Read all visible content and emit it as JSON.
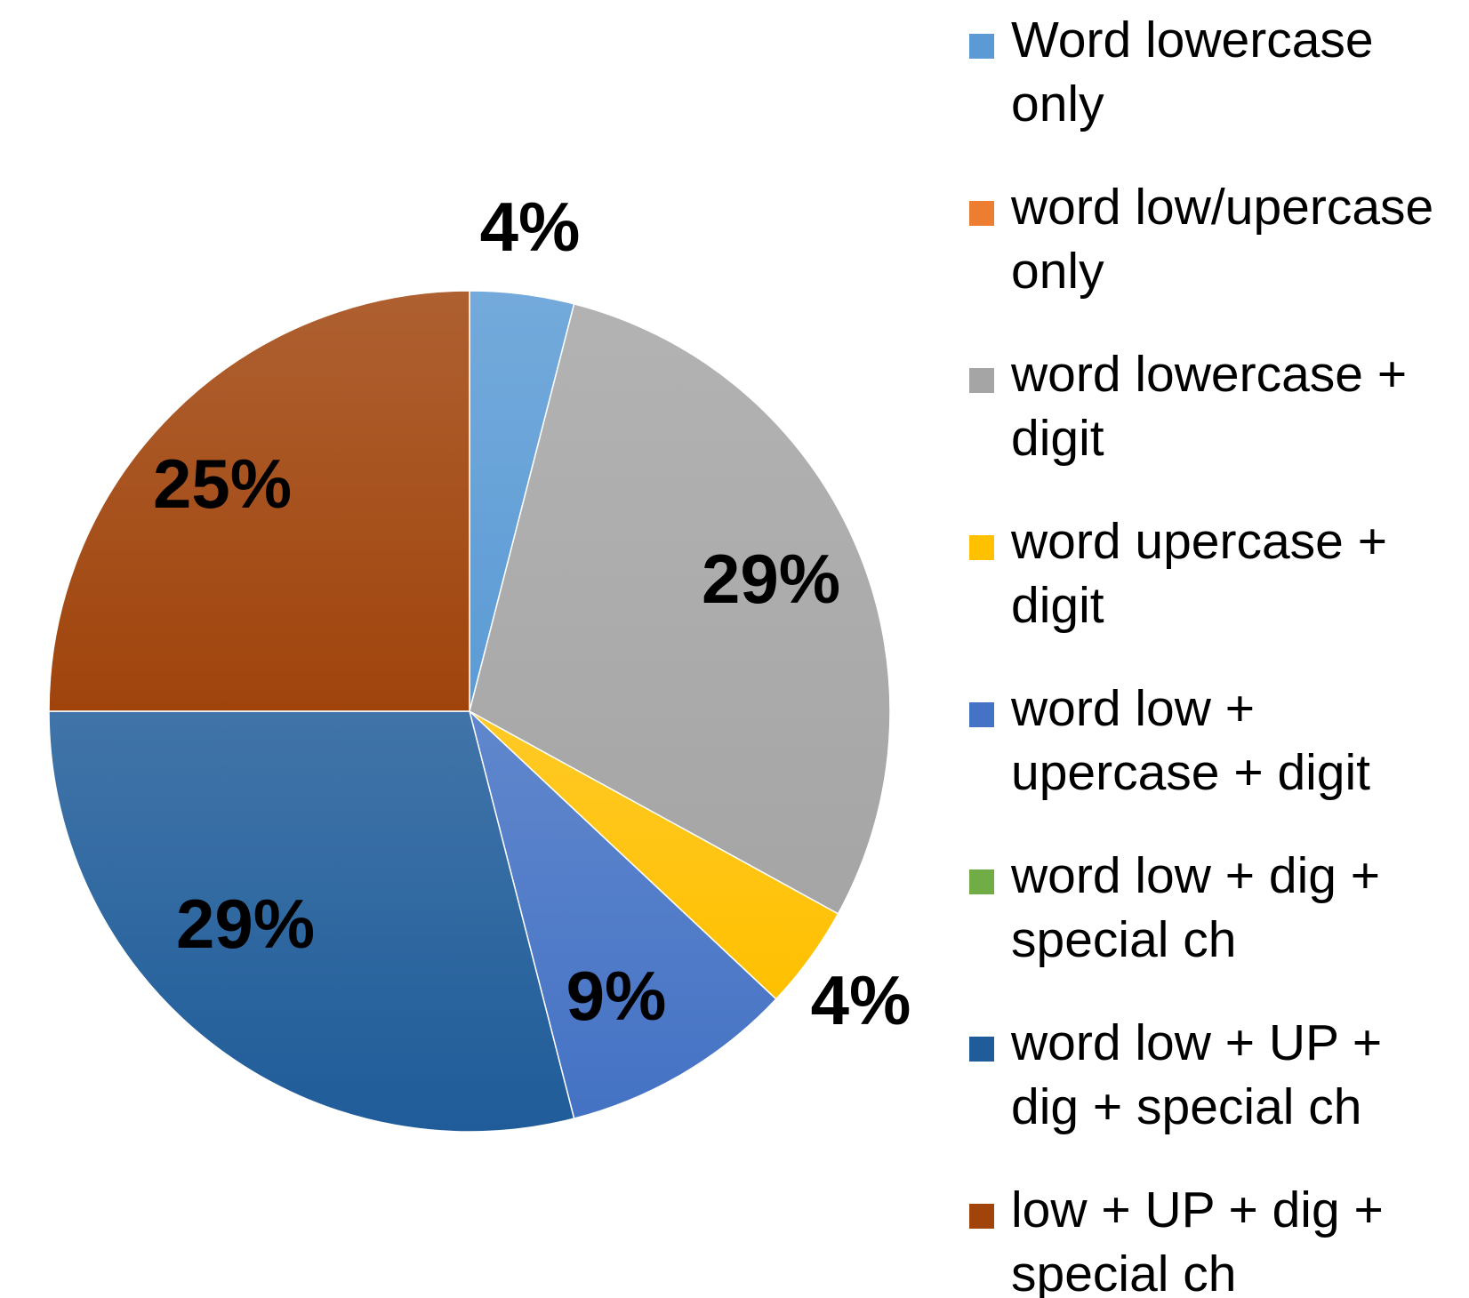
{
  "chart_data": {
    "type": "pie",
    "categories": [
      "Word lowercase only",
      "word low/upercase only",
      "word lowercase + digit",
      "word upercase + digit",
      "word low + upercase + digit",
      "word low + dig + special ch",
      "word low + UP + dig + special ch",
      "low + UP + dig + special ch"
    ],
    "values": [
      4,
      0,
      29,
      4,
      9,
      0,
      29,
      25
    ],
    "data_labels": [
      "4%",
      "",
      "29%",
      "4%",
      "9%",
      "",
      "29%",
      "25%"
    ],
    "legend_lines": [
      [
        "Word lowercase",
        "only"
      ],
      [
        "word low/upercase",
        "only"
      ],
      [
        "word lowercase +",
        "digit"
      ],
      [
        "word upercase +",
        "digit"
      ],
      [
        "word low +",
        "upercase + digit"
      ],
      [
        "word low + dig +",
        "special ch"
      ],
      [
        "word low + UP +",
        "dig + special ch"
      ],
      [
        "low + UP + dig +",
        "special ch"
      ]
    ],
    "colors": [
      "#5b9bd5",
      "#ed7d31",
      "#a5a5a5",
      "#ffc000",
      "#4472c4",
      "#70ad47",
      "#1f5c99",
      "#a0440c"
    ],
    "legend_position": "right"
  }
}
